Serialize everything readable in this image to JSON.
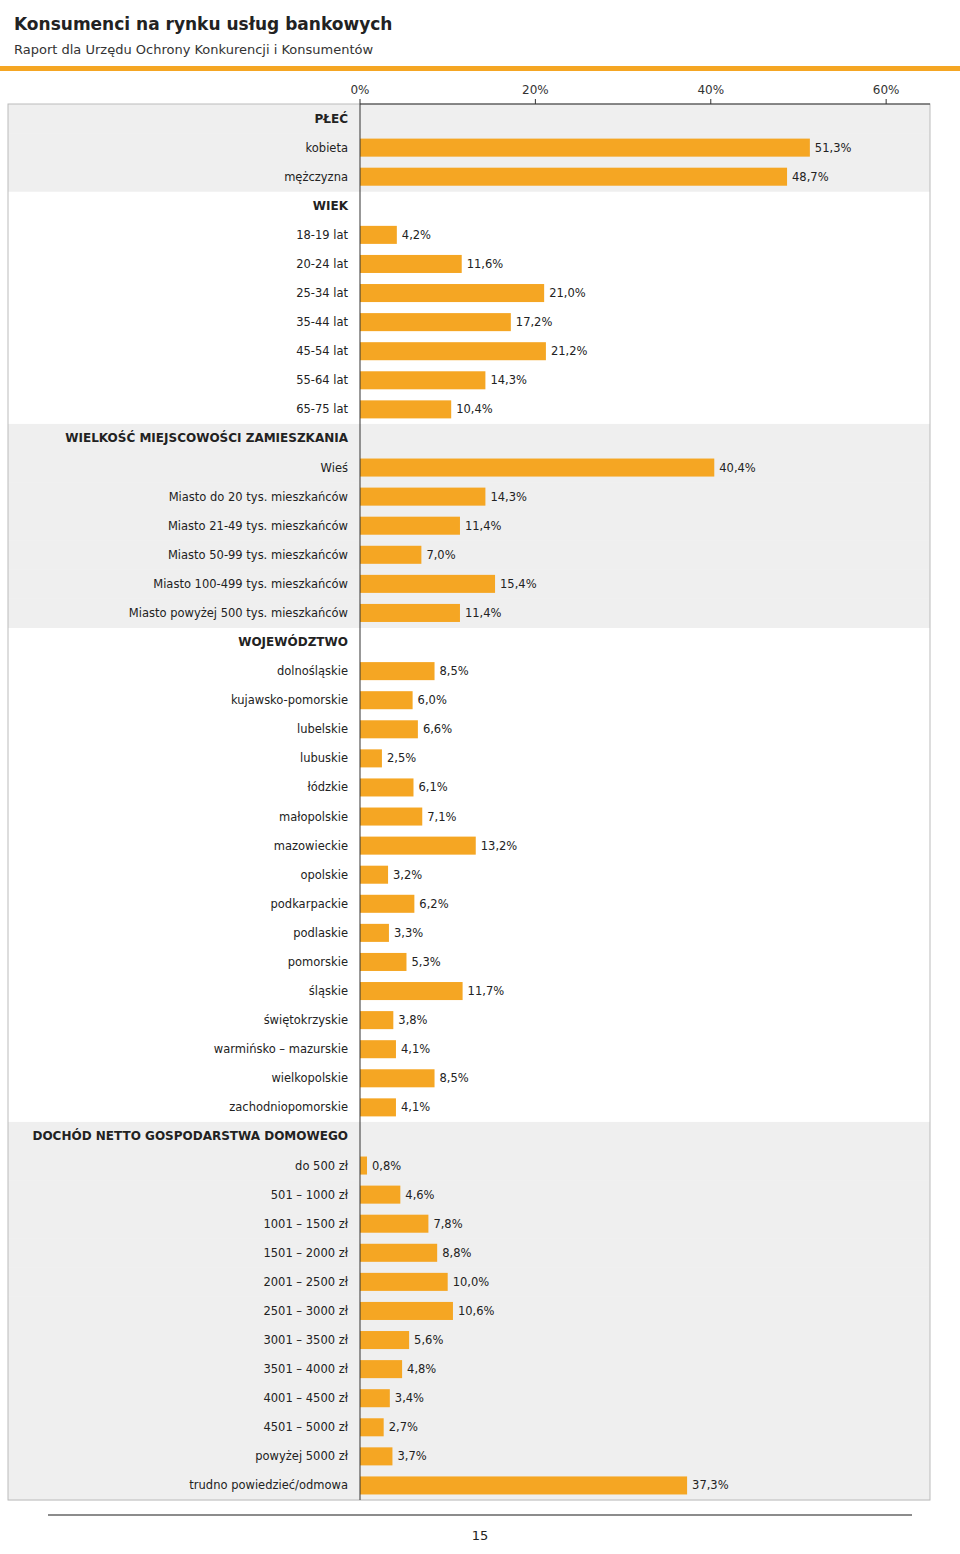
{
  "chart_data": {
    "type": "bar",
    "orientation": "horizontal",
    "title": "Konsumenci na rynku usług bankowych",
    "subtitle": "Raport dla Urzędu Ochrony Konkurencji i Konsumentów",
    "annotations": [
      "15"
    ],
    "color": "#F5A623",
    "categories": [
      "PŁEĆ",
      "kobieta",
      "mężczyzna",
      "WIEK",
      "18-19 lat",
      "20-24 lat",
      "25-34 lat",
      "35-44 lat",
      "45-54 lat",
      "55-64 lat",
      "65-75 lat",
      "WIELKOŚĆ MIEJSCOWOŚCI ZAMIESZKANIA",
      "Wieś",
      "Miasto do 20 tys. mieszkańców",
      "Miasto 21-49 tys. mieszkańców",
      "Miasto 50-99 tys. mieszkańców",
      "Miasto 100-499 tys. mieszkańców",
      "Miasto powyżej 500 tys. mieszkańców",
      "WOJEWÓDZTWO",
      "dolnośląskie",
      "kujawsko-pomorskie",
      "lubelskie",
      "lubuskie",
      "łódzkie",
      "małopolskie",
      "mazowieckie",
      "opolskie",
      "podkarpackie",
      "podlaskie",
      "pomorskie",
      "śląskie",
      "świętokrzyskie",
      "warmińsko – mazurskie",
      "wielkopolskie",
      "zachodniopomorskie",
      "DOCHÓD NETTO GOSPODARSTWA DOMOWEGO",
      "do 500 zł",
      "501 – 1000 zł",
      "1001 – 1500 zł",
      "1501 – 2000 zł",
      "2001 – 2500 zł",
      "2501 – 3000 zł",
      "3001 – 3500 zł",
      "3501 – 4000 zł",
      "4001 – 4500 zł",
      "4501 – 5000 zł",
      "powyżej 5000 zł",
      "trudno powiedzieć/odmowa"
    ],
    "values": [
      null,
      51.3,
      48.7,
      null,
      4.2,
      11.6,
      21.0,
      17.2,
      21.2,
      14.3,
      10.4,
      null,
      40.4,
      14.3,
      11.4,
      7.0,
      15.4,
      11.4,
      null,
      8.5,
      6.0,
      6.6,
      2.5,
      6.1,
      7.1,
      13.2,
      3.2,
      6.2,
      3.3,
      5.3,
      11.7,
      3.8,
      4.1,
      8.5,
      4.1,
      null,
      0.8,
      4.6,
      7.8,
      8.8,
      10.0,
      10.6,
      5.6,
      4.8,
      3.4,
      2.7,
      3.7,
      37.3
    ],
    "value_labels": [
      null,
      "51,3%",
      "48,7%",
      null,
      "4,2%",
      "11,6%",
      "21,0%",
      "17,2%",
      "21,2%",
      "14,3%",
      "10,4%",
      null,
      "40,4%",
      "14,3%",
      "11,4%",
      "7,0%",
      "15,4%",
      "11,4%",
      null,
      "8,5%",
      "6,0%",
      "6,6%",
      "2,5%",
      "6,1%",
      "7,1%",
      "13,2%",
      "3,2%",
      "6,2%",
      "3,3%",
      "5,3%",
      "11,7%",
      "3,8%",
      "4,1%",
      "8,5%",
      "4,1%",
      null,
      "0,8%",
      "4,6%",
      "7,8%",
      "8,8%",
      "10,0%",
      "10,6%",
      "5,6%",
      "4,8%",
      "3,4%",
      "2,7%",
      "3,7%",
      "37,3%"
    ],
    "data_labels": true,
    "xlim": [
      0,
      65
    ],
    "xticks": [
      {
        "value": 0,
        "label": "0%"
      },
      {
        "value": 20,
        "label": "20%"
      },
      {
        "value": 40,
        "label": "40%"
      },
      {
        "value": 60,
        "label": "60%"
      }
    ],
    "grid": false
  }
}
